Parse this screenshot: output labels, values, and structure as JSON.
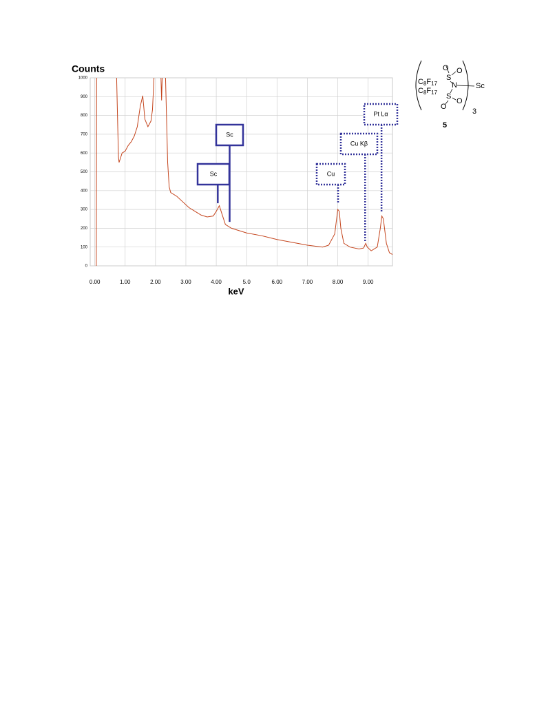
{
  "chart_data": {
    "type": "line",
    "title": "Counts",
    "xlabel": "keV",
    "x": [
      0.05,
      0.06,
      null,
      0.72,
      0.78,
      0.8,
      0.9,
      1.0,
      1.1,
      1.2,
      1.3,
      1.4,
      1.5,
      1.58,
      1.65,
      1.75,
      1.85,
      1.9,
      1.95,
      null,
      2.18,
      2.2,
      2.22,
      null,
      2.33,
      2.4,
      2.45,
      2.5,
      2.7,
      2.9,
      3.1,
      3.3,
      3.5,
      3.7,
      3.9,
      4.0,
      4.1,
      4.2,
      4.3,
      4.5,
      4.8,
      5.0,
      5.5,
      6.0,
      6.5,
      7.0,
      7.5,
      7.7,
      7.9,
      8.0,
      8.05,
      8.1,
      8.2,
      8.4,
      8.7,
      8.85,
      8.92,
      8.97,
      9.1,
      9.3,
      9.4,
      9.45,
      9.5,
      9.6,
      9.7,
      9.8
    ],
    "series": [
      {
        "name": "Counts",
        "color": "#c4441c",
        "values": [
          0,
          1000,
          null,
          1000,
          580,
          550,
          600,
          610,
          640,
          660,
          690,
          740,
          850,
          905,
          780,
          740,
          770,
          830,
          1000,
          null,
          1000,
          880,
          1000,
          null,
          1000,
          550,
          420,
          390,
          370,
          340,
          310,
          290,
          270,
          260,
          265,
          290,
          320,
          270,
          220,
          200,
          185,
          175,
          160,
          140,
          125,
          110,
          100,
          110,
          170,
          300,
          290,
          200,
          120,
          100,
          90,
          95,
          120,
          100,
          80,
          100,
          200,
          265,
          250,
          120,
          70,
          60
        ]
      }
    ],
    "xlim": [
      -0.15,
      9.8
    ],
    "ylim": [
      0,
      1000
    ],
    "xticks": [
      {
        "value": 0,
        "label": "0.00"
      },
      {
        "value": 1,
        "label": "1.00"
      },
      {
        "value": 2,
        "label": "2.00"
      },
      {
        "value": 3,
        "label": "3.00"
      },
      {
        "value": 4,
        "label": "4.00"
      },
      {
        "value": 5,
        "label": "5.0"
      },
      {
        "value": 6,
        "label": "6.00"
      },
      {
        "value": 7,
        "label": "7.00"
      },
      {
        "value": 8,
        "label": "8.00"
      },
      {
        "value": 9,
        "label": "9.00"
      }
    ],
    "yticks": [
      0,
      100,
      200,
      300,
      400,
      500,
      600,
      700,
      800,
      900,
      1000
    ],
    "grid": true,
    "annotations": [
      {
        "text": "Sc",
        "x": 4.05,
        "y": 333,
        "style": "solid"
      },
      {
        "text": "Sc",
        "x": 4.44,
        "y": 234,
        "style": "solid"
      },
      {
        "text": "Cu",
        "x": 8.01,
        "y": 333,
        "style": "dotted"
      },
      {
        "text": "Cu Kβ",
        "x": 8.9,
        "y": 125,
        "style": "dotted"
      },
      {
        "text": "Pt Lα",
        "x": 9.44,
        "y": 286,
        "style": "dotted"
      }
    ]
  },
  "structure": {
    "atoms": [
      "O",
      "O",
      "S",
      "N",
      "Sc",
      "S",
      "O",
      "O"
    ],
    "rf": [
      "C",
      "8",
      "F",
      "17"
    ],
    "subscript": "3",
    "label": "5"
  }
}
